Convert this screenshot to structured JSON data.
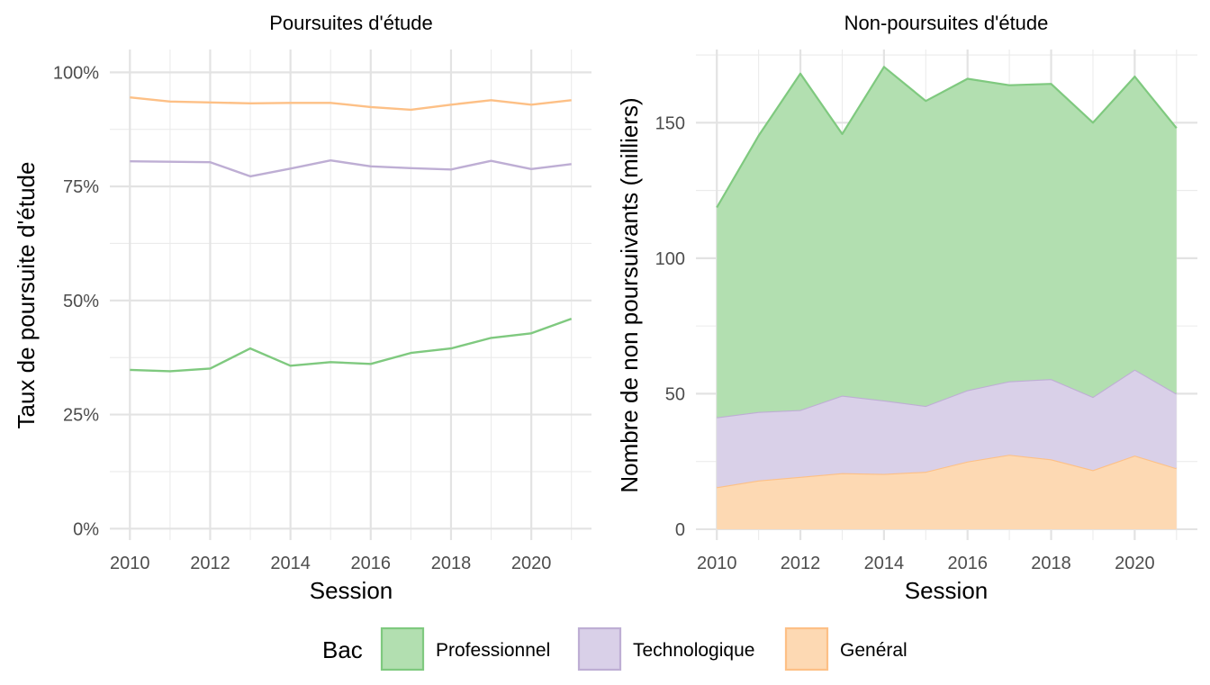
{
  "legend": {
    "title": "Bac",
    "items": [
      {
        "label": "Professionnel",
        "fill": "#b2dfb0",
        "stroke": "#7fc97f"
      },
      {
        "label": "Technologique",
        "fill": "#d9d0e8",
        "stroke": "#beaed4"
      },
      {
        "label": "Genéral",
        "fill": "#fdd9b3",
        "stroke": "#fdc086"
      }
    ],
    "placement": "bottom"
  },
  "chart_data": [
    {
      "type": "line",
      "title": "Poursuites d'étude",
      "xlabel": "Session",
      "ylabel": "Taux de poursuite d'étude",
      "x": [
        2010,
        2011,
        2012,
        2013,
        2014,
        2015,
        2016,
        2017,
        2018,
        2019,
        2020,
        2021
      ],
      "xlim": [
        2009.5,
        2021.5
      ],
      "ylim": [
        -2.5,
        105
      ],
      "xticks": [
        2010,
        2012,
        2014,
        2016,
        2018,
        2020
      ],
      "yticks": [
        0,
        25,
        50,
        75,
        100
      ],
      "ytick_labels": [
        "0%",
        "25%",
        "50%",
        "75%",
        "100%"
      ],
      "grid": true,
      "series": [
        {
          "name": "Genéral",
          "color": "#fdc086",
          "values": [
            94.5,
            93.6,
            93.4,
            93.2,
            93.3,
            93.3,
            92.4,
            91.8,
            92.9,
            93.9,
            92.9,
            93.9
          ]
        },
        {
          "name": "Technologique",
          "color": "#beaed4",
          "values": [
            80.5,
            80.4,
            80.3,
            77.2,
            78.9,
            80.7,
            79.4,
            79.0,
            78.7,
            80.6,
            78.8,
            79.9
          ]
        },
        {
          "name": "Professionnel",
          "color": "#7fc97f",
          "values": [
            34.8,
            34.5,
            35.1,
            39.5,
            35.7,
            36.5,
            36.1,
            38.5,
            39.5,
            41.8,
            42.8,
            46.0
          ]
        }
      ]
    },
    {
      "type": "area",
      "stacked": true,
      "title": "Non-poursuites d'étude",
      "xlabel": "Session",
      "ylabel": "Nombre de non poursuivants (milliers)",
      "x": [
        2010,
        2011,
        2012,
        2013,
        2014,
        2015,
        2016,
        2017,
        2018,
        2019,
        2020,
        2021
      ],
      "xlim": [
        2009.5,
        2021.5
      ],
      "ylim": [
        -4,
        177
      ],
      "xticks": [
        2010,
        2012,
        2014,
        2016,
        2018,
        2020
      ],
      "yticks": [
        0,
        50,
        100,
        150
      ],
      "ytick_labels": [
        "0",
        "50",
        "100",
        "150"
      ],
      "grid": true,
      "series": [
        {
          "name": "Genéral",
          "fill": "#fdd9b3",
          "stroke": "#fdc086",
          "values": [
            15.5,
            18.0,
            19.3,
            20.7,
            20.4,
            21.2,
            25.0,
            27.5,
            25.8,
            21.8,
            27.2,
            22.5
          ]
        },
        {
          "name": "Technologique",
          "fill": "#d9d0e8",
          "stroke": "#beaed4",
          "values": [
            25.8,
            25.3,
            24.7,
            28.6,
            27.1,
            24.3,
            26.3,
            27.1,
            29.6,
            27.0,
            31.7,
            27.5
          ]
        },
        {
          "name": "Professionnel",
          "fill": "#b2dfb0",
          "stroke": "#7fc97f",
          "values": [
            77.4,
            101.9,
            124.1,
            96.5,
            123.1,
            112.5,
            114.9,
            109.2,
            108.9,
            101.2,
            108.1,
            98.0
          ]
        }
      ]
    }
  ]
}
